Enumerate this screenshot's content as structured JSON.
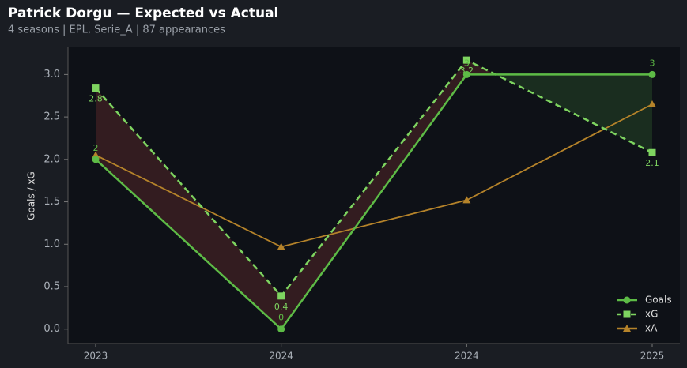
{
  "chart_data": {
    "type": "line",
    "title": "Patrick Dorgu — Expected vs Actual",
    "subtitle": "4 seasons | EPL, Serie_A | 87 appearances",
    "y_label": "Goals / xG",
    "categories": [
      "2023",
      "2024",
      "2024",
      "2025"
    ],
    "series": [
      {
        "name": "Goals",
        "color": "#5dbb46",
        "marker": "circle",
        "dashed": false,
        "values": [
          2,
          0,
          3,
          3
        ],
        "value_labels": [
          "2",
          "0",
          "3",
          "3"
        ]
      },
      {
        "name": "xG",
        "color": "#7ed460",
        "marker": "square",
        "dashed": true,
        "values": [
          2.84,
          0.39,
          3.17,
          2.08
        ],
        "value_labels": [
          "2.8",
          "0.4",
          "3.2",
          "2.1"
        ]
      },
      {
        "name": "xA",
        "color": "#b5832a",
        "marker": "triangle",
        "dashed": false,
        "values": [
          2.05,
          0.97,
          1.52,
          2.65
        ]
      }
    ],
    "ylim": [
      -0.17,
      3.32
    ],
    "yticks": [
      {
        "value": 0,
        "label": "0.0"
      },
      0.5,
      {
        "value": 1,
        "label": "1.0"
      },
      1.5,
      {
        "value": 2,
        "label": "2.0"
      },
      2.5,
      {
        "value": 3,
        "label": "3.0"
      }
    ],
    "legend": "lower right",
    "fill_over": "#3a1f22",
    "fill_under": "#1c3321"
  }
}
